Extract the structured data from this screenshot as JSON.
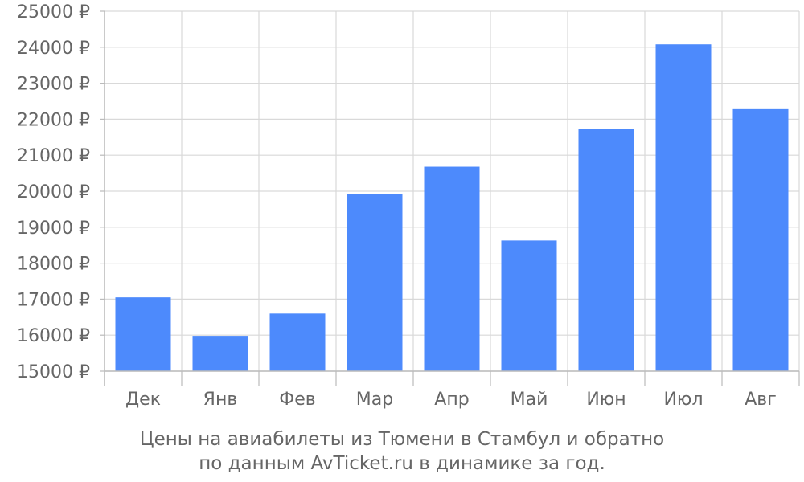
{
  "chart_data": {
    "type": "bar",
    "categories": [
      "Дек",
      "Янв",
      "Фев",
      "Мар",
      "Апр",
      "Май",
      "Июн",
      "Июл",
      "Авг"
    ],
    "values": [
      17050,
      15980,
      16600,
      19920,
      20680,
      18630,
      21720,
      24080,
      22280
    ],
    "ylim": [
      15000,
      25000
    ],
    "yticks": [
      15000,
      16000,
      17000,
      18000,
      19000,
      20000,
      21000,
      22000,
      23000,
      24000,
      25000
    ],
    "y_tick_suffix": " ₽",
    "grid": true,
    "bar_color": "#4d8afc",
    "caption_line1": "Цены на авиабилеты из Тюмени в Стамбул и обратно",
    "caption_line2": "по данным AvTicket.ru в динамике за год."
  }
}
